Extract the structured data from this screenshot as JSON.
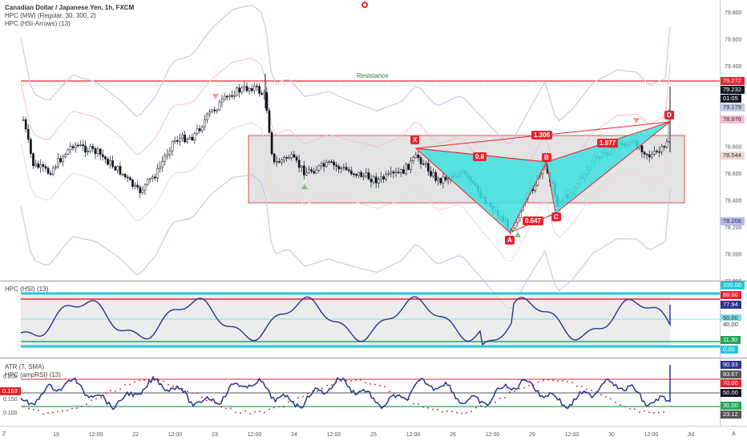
{
  "main_pane": {
    "legend": {
      "symbol_line": "Canadian Dollar / Japanese Yen, 1h, FXCM",
      "indicator1": "HPC (MW) (Regular, 30, 300, 2)",
      "indicator2": "HPC (HSI-Arrows) (13)"
    },
    "resistance_label": "Resistance",
    "pattern_labels": {
      "X": "X",
      "A": "A",
      "B": "B",
      "C": "C",
      "D": "D"
    },
    "ratios": {
      "xb": "0.8",
      "ac": "0.647",
      "xd": "1.306",
      "bd": "1.977"
    },
    "price_axis": [
      "79.800",
      "79.600",
      "79.400",
      "79.200",
      "79.000",
      "78.800",
      "78.600",
      "78.400",
      "78.200",
      "78.000",
      "77.800"
    ],
    "price_badges": [
      {
        "value": "79.272",
        "bg": "#e8242f"
      },
      {
        "value": "79.232",
        "bg": "#131722"
      },
      {
        "value": "01:05",
        "bg": "#131722"
      },
      {
        "value": "79.179",
        "bg": "#c5cae9",
        "fg": "#333"
      },
      {
        "value": "78.976",
        "bg": "#f8bbd0",
        "fg": "#333"
      },
      {
        "value": "78.544",
        "bg": "#f3d6cf",
        "fg": "#333"
      },
      {
        "value": "78.208",
        "bg": "#b3bbea",
        "fg": "#333"
      }
    ]
  },
  "hsi_pane": {
    "legend": "HPC (HSI) (13)",
    "badges": [
      {
        "value": "100.00",
        "bg": "#26c6da"
      },
      {
        "value": "88.60",
        "bg": "#e8242f"
      },
      {
        "value": "77.94",
        "bg": "#283593"
      },
      {
        "value": "50.00",
        "bg": "#80deea",
        "fg": "#333"
      },
      {
        "value": "40.00",
        "bg": "#ffffff",
        "fg": "#333"
      },
      {
        "value": "11.30",
        "bg": "#26a65b"
      },
      {
        "value": "0.00",
        "bg": "#26c6da"
      }
    ]
  },
  "atr_pane": {
    "legend1": "ATR (7, SMA)",
    "legend2": "HPC (ampRSI) (13)",
    "left_axis": [
      "0.200",
      "0.150",
      "0.100"
    ],
    "left_badge": "0.163",
    "badges": [
      {
        "value": "90.93",
        "bg": "#283593"
      },
      {
        "value": "83.67",
        "bg": "#555555"
      },
      {
        "value": "70.00",
        "bg": "#e8242f"
      },
      {
        "value": "50.00",
        "bg": "#131722"
      },
      {
        "value": "30.00",
        "bg": "#26a65b"
      },
      {
        "value": "23.12",
        "bg": "#555555"
      }
    ]
  },
  "time_axis": [
    "19",
    "12:00",
    "22",
    "12:00",
    "23",
    "12:00",
    "24",
    "12:00",
    "25",
    "12:00",
    "26",
    "12:00",
    "29",
    "12:00",
    "30",
    "12:00",
    "Jul"
  ],
  "corner_labels": {
    "left": "Z",
    "right": "A"
  },
  "colors": {
    "up": "#ffffff",
    "down": "#131722",
    "cyan": "#26c6da",
    "red": "#e8242f",
    "navy": "#283593",
    "green": "#26a65b",
    "gray_box": "#d9d9d9"
  }
}
